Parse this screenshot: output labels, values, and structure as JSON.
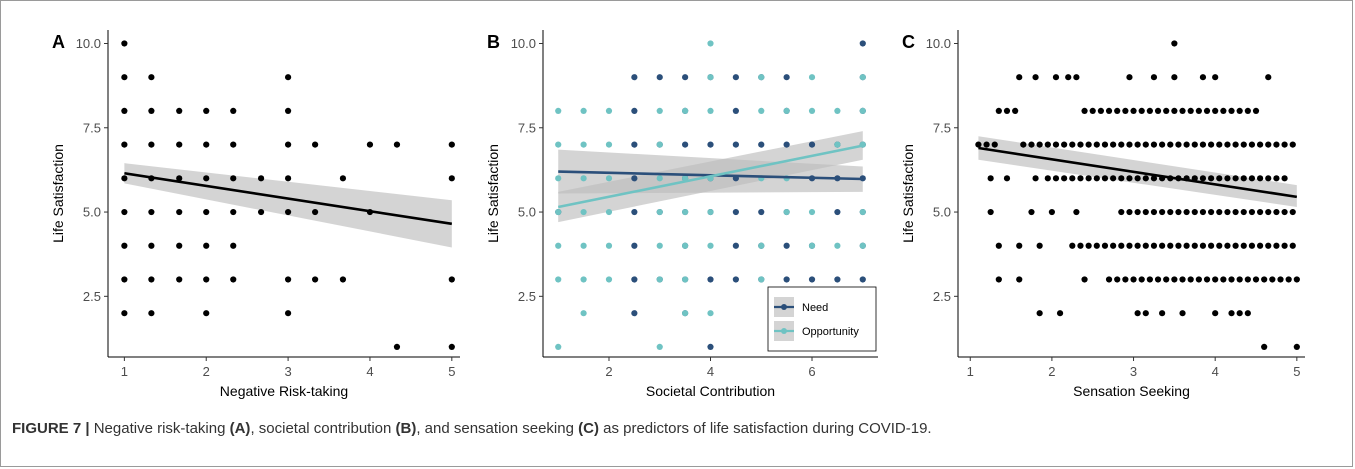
{
  "caption": {
    "label": "FIGURE 7 |",
    "part1": " Negative risk-taking ",
    "a": "(A)",
    "part2": ", societal contribution ",
    "b": "(B)",
    "part3": ", and sensation seeking ",
    "c": "(C)",
    "part4": " as predictors of life satisfaction during COVID-19."
  },
  "colors": {
    "points": "#000000",
    "need": "#2b4f7a",
    "opportunity": "#6fc3c3",
    "ci": "#bdbdbd"
  },
  "chart_data": [
    {
      "panel": "A",
      "type": "scatter",
      "xlabel": "Negative Risk-taking",
      "ylabel": "Life Satisfaction",
      "xlim": [
        0.8,
        5.1
      ],
      "ylim": [
        0.7,
        10.4
      ],
      "xticks": [
        1,
        2,
        3,
        4,
        5
      ],
      "xtick_labels": [
        "1",
        "2",
        "3",
        "4",
        "5"
      ],
      "yticks": [
        2.5,
        5.0,
        7.5,
        10.0
      ],
      "ytick_labels": [
        "2.5",
        "5.0",
        "7.5",
        "10.0"
      ],
      "grid": false,
      "series": [
        {
          "points": [
            [
              1,
              10
            ],
            [
              1,
              9
            ],
            [
              1,
              8
            ],
            [
              1,
              7
            ],
            [
              1,
              6
            ],
            [
              1,
              5
            ],
            [
              1,
              4
            ],
            [
              1,
              3
            ],
            [
              1,
              2
            ],
            [
              1.33,
              9
            ],
            [
              1.33,
              8
            ],
            [
              1.33,
              7
            ],
            [
              1.33,
              6
            ],
            [
              1.33,
              5
            ],
            [
              1.33,
              4
            ],
            [
              1.33,
              3
            ],
            [
              1.33,
              2
            ],
            [
              1.67,
              8
            ],
            [
              1.67,
              7
            ],
            [
              1.67,
              6
            ],
            [
              1.67,
              5
            ],
            [
              1.67,
              4
            ],
            [
              1.67,
              3
            ],
            [
              2,
              8
            ],
            [
              2,
              7
            ],
            [
              2,
              6
            ],
            [
              2,
              5
            ],
            [
              2,
              4
            ],
            [
              2,
              3
            ],
            [
              2,
              2
            ],
            [
              2.33,
              8
            ],
            [
              2.33,
              7
            ],
            [
              2.33,
              6
            ],
            [
              2.33,
              5
            ],
            [
              2.33,
              4
            ],
            [
              2.33,
              3
            ],
            [
              2.67,
              6
            ],
            [
              2.67,
              5
            ],
            [
              3,
              9
            ],
            [
              3,
              8
            ],
            [
              3,
              7
            ],
            [
              3,
              6
            ],
            [
              3,
              5
            ],
            [
              3,
              3
            ],
            [
              3,
              2
            ],
            [
              3.33,
              7
            ],
            [
              3.33,
              5
            ],
            [
              3.33,
              3
            ],
            [
              3.67,
              6
            ],
            [
              3.67,
              3
            ],
            [
              4,
              7
            ],
            [
              4,
              5
            ],
            [
              4.33,
              7
            ],
            [
              4.33,
              1
            ],
            [
              5,
              7
            ],
            [
              5,
              6
            ],
            [
              5,
              3
            ],
            [
              5,
              1
            ]
          ],
          "fit": {
            "x": [
              1,
              5
            ],
            "y": [
              6.15,
              4.65
            ],
            "ci_low": [
              5.85,
              3.95
            ],
            "ci_high": [
              6.45,
              5.35
            ]
          }
        }
      ]
    },
    {
      "panel": "B",
      "type": "scatter",
      "xlabel": "Societal Contribution",
      "ylabel": "Life Satisfaction",
      "xlim": [
        0.7,
        7.3
      ],
      "ylim": [
        0.7,
        10.4
      ],
      "xticks": [
        2,
        4,
        6
      ],
      "xtick_labels": [
        "2",
        "4",
        "6"
      ],
      "yticks": [
        2.5,
        5.0,
        7.5,
        10.0
      ],
      "ytick_labels": [
        "2.5",
        "5.0",
        "7.5",
        "10.0"
      ],
      "grid": false,
      "legend": {
        "position": "bottom-right",
        "entries": [
          "Need",
          "Opportunity"
        ]
      },
      "series": [
        {
          "name": "Need",
          "points": [
            [
              1,
              5
            ],
            [
              2.5,
              9
            ],
            [
              2.5,
              8
            ],
            [
              2.5,
              7
            ],
            [
              2.5,
              6
            ],
            [
              2.5,
              5
            ],
            [
              2.5,
              4
            ],
            [
              2.5,
              3
            ],
            [
              2.5,
              2
            ],
            [
              3,
              9
            ],
            [
              3,
              7
            ],
            [
              3,
              5
            ],
            [
              3,
              3
            ],
            [
              3.5,
              9
            ],
            [
              3.5,
              8
            ],
            [
              3.5,
              7
            ],
            [
              3.5,
              6
            ],
            [
              3.5,
              5
            ],
            [
              3.5,
              4
            ],
            [
              3.5,
              3
            ],
            [
              3.5,
              2
            ],
            [
              4,
              9
            ],
            [
              4,
              7
            ],
            [
              4,
              6
            ],
            [
              4,
              5
            ],
            [
              4,
              3
            ],
            [
              4,
              1
            ],
            [
              4.5,
              9
            ],
            [
              4.5,
              8
            ],
            [
              4.5,
              7
            ],
            [
              4.5,
              6
            ],
            [
              4.5,
              5
            ],
            [
              4.5,
              4
            ],
            [
              4.5,
              3
            ],
            [
              5,
              9
            ],
            [
              5,
              7
            ],
            [
              5,
              5
            ],
            [
              5,
              4
            ],
            [
              5,
              3
            ],
            [
              5.5,
              9
            ],
            [
              5.5,
              8
            ],
            [
              5.5,
              7
            ],
            [
              5.5,
              5
            ],
            [
              5.5,
              4
            ],
            [
              5.5,
              3
            ],
            [
              6,
              7
            ],
            [
              6,
              6
            ],
            [
              6,
              4
            ],
            [
              6,
              3
            ],
            [
              6.5,
              7
            ],
            [
              6.5,
              6
            ],
            [
              6.5,
              5
            ],
            [
              6.5,
              3
            ],
            [
              7,
              10
            ],
            [
              7,
              9
            ],
            [
              7,
              8
            ],
            [
              7,
              7
            ],
            [
              7,
              6
            ],
            [
              7,
              5
            ],
            [
              7,
              4
            ],
            [
              7,
              3
            ]
          ],
          "fit": {
            "x": [
              1,
              7
            ],
            "y": [
              6.2,
              5.98
            ],
            "ci_low": [
              5.55,
              5.6
            ],
            "ci_high": [
              6.85,
              6.35
            ]
          }
        },
        {
          "name": "Opportunity",
          "points": [
            [
              1,
              8
            ],
            [
              1,
              7
            ],
            [
              1,
              6
            ],
            [
              1,
              5
            ],
            [
              1,
              4
            ],
            [
              1,
              3
            ],
            [
              1,
              1
            ],
            [
              1.5,
              8
            ],
            [
              1.5,
              7
            ],
            [
              1.5,
              6
            ],
            [
              1.5,
              5
            ],
            [
              1.5,
              4
            ],
            [
              1.5,
              3
            ],
            [
              1.5,
              2
            ],
            [
              2,
              8
            ],
            [
              2,
              7
            ],
            [
              2,
              6
            ],
            [
              2,
              5
            ],
            [
              2,
              4
            ],
            [
              2,
              3
            ],
            [
              3,
              8
            ],
            [
              3,
              7
            ],
            [
              3,
              6
            ],
            [
              3,
              5
            ],
            [
              3,
              4
            ],
            [
              3,
              3
            ],
            [
              3,
              1
            ],
            [
              3.5,
              8
            ],
            [
              3.5,
              6
            ],
            [
              3.5,
              5
            ],
            [
              3.5,
              4
            ],
            [
              3.5,
              3
            ],
            [
              3.5,
              2
            ],
            [
              4,
              10
            ],
            [
              4,
              9
            ],
            [
              4,
              8
            ],
            [
              4,
              6
            ],
            [
              4,
              5
            ],
            [
              4,
              4
            ],
            [
              4,
              2
            ],
            [
              5,
              9
            ],
            [
              5,
              8
            ],
            [
              5,
              6
            ],
            [
              5,
              4
            ],
            [
              5,
              3
            ],
            [
              5.5,
              8
            ],
            [
              5.5,
              6
            ],
            [
              5.5,
              5
            ],
            [
              6,
              9
            ],
            [
              6,
              8
            ],
            [
              6,
              5
            ],
            [
              6,
              4
            ],
            [
              6.5,
              8
            ],
            [
              6.5,
              7
            ],
            [
              6.5,
              4
            ],
            [
              7,
              9
            ],
            [
              7,
              8
            ],
            [
              7,
              7
            ],
            [
              7,
              5
            ],
            [
              7,
              4
            ]
          ],
          "fit": {
            "x": [
              1,
              7
            ],
            "y": [
              5.15,
              6.97
            ],
            "ci_low": [
              4.7,
              6.55
            ],
            "ci_high": [
              5.6,
              7.4
            ]
          }
        }
      ]
    },
    {
      "panel": "C",
      "type": "scatter",
      "xlabel": "Sensation Seeking",
      "ylabel": "Life Satisfaction",
      "xlim": [
        0.85,
        5.1
      ],
      "ylim": [
        0.7,
        10.4
      ],
      "xticks": [
        1,
        2,
        3,
        4,
        5
      ],
      "xtick_labels": [
        "1",
        "2",
        "3",
        "4",
        "5"
      ],
      "yticks": [
        2.5,
        5.0,
        7.5,
        10.0
      ],
      "ytick_labels": [
        "2.5",
        "5.0",
        "7.5",
        "10.0"
      ],
      "grid": false,
      "series": [
        {
          "points": [
            [
              1.1,
              7
            ],
            [
              1.2,
              7
            ],
            [
              1.3,
              7
            ],
            [
              1.25,
              6
            ],
            [
              1.25,
              5
            ],
            [
              1.35,
              8
            ],
            [
              1.35,
              4
            ],
            [
              1.35,
              3
            ],
            [
              1.45,
              8
            ],
            [
              1.45,
              6
            ],
            [
              1.55,
              8
            ],
            [
              1.6,
              9
            ],
            [
              1.6,
              4
            ],
            [
              1.6,
              3
            ],
            [
              1.75,
              5
            ],
            [
              1.8,
              9
            ],
            [
              1.8,
              6
            ],
            [
              1.85,
              4
            ],
            [
              1.85,
              2
            ],
            [
              2.05,
              9
            ],
            [
              2.0,
              5
            ],
            [
              2.1,
              2
            ],
            [
              2.2,
              9
            ],
            [
              2.3,
              9
            ],
            [
              2.3,
              5
            ],
            [
              2.4,
              8
            ],
            [
              2.4,
              3
            ],
            [
              2.95,
              9
            ],
            [
              3.05,
              2
            ],
            [
              3.15,
              2
            ],
            [
              3.25,
              9
            ],
            [
              3.35,
              2
            ],
            [
              3.5,
              10
            ],
            [
              3.5,
              9
            ],
            [
              3.6,
              2
            ],
            [
              3.85,
              9
            ],
            [
              4.0,
              9
            ],
            [
              4.0,
              2
            ],
            [
              4.2,
              2
            ],
            [
              4.3,
              2
            ],
            [
              4.4,
              2
            ],
            [
              4.65,
              9
            ],
            [
              4.6,
              1
            ],
            [
              5,
              1
            ]
          ],
          "bands": [
            {
              "y": 7,
              "from": 1.65,
              "to": 5
            },
            {
              "y": 8,
              "from": 2.5,
              "to": 4.55
            },
            {
              "y": 6,
              "from": 1.95,
              "to": 4.85
            },
            {
              "y": 5,
              "from": 2.85,
              "to": 5
            },
            {
              "y": 4,
              "from": 2.25,
              "to": 5
            },
            {
              "y": 3,
              "from": 2.7,
              "to": 5
            }
          ],
          "fit": {
            "x": [
              1.1,
              5
            ],
            "y": [
              6.9,
              5.45
            ],
            "ci_low": [
              6.55,
              5.15
            ],
            "ci_high": [
              7.25,
              5.8
            ]
          }
        }
      ]
    }
  ]
}
